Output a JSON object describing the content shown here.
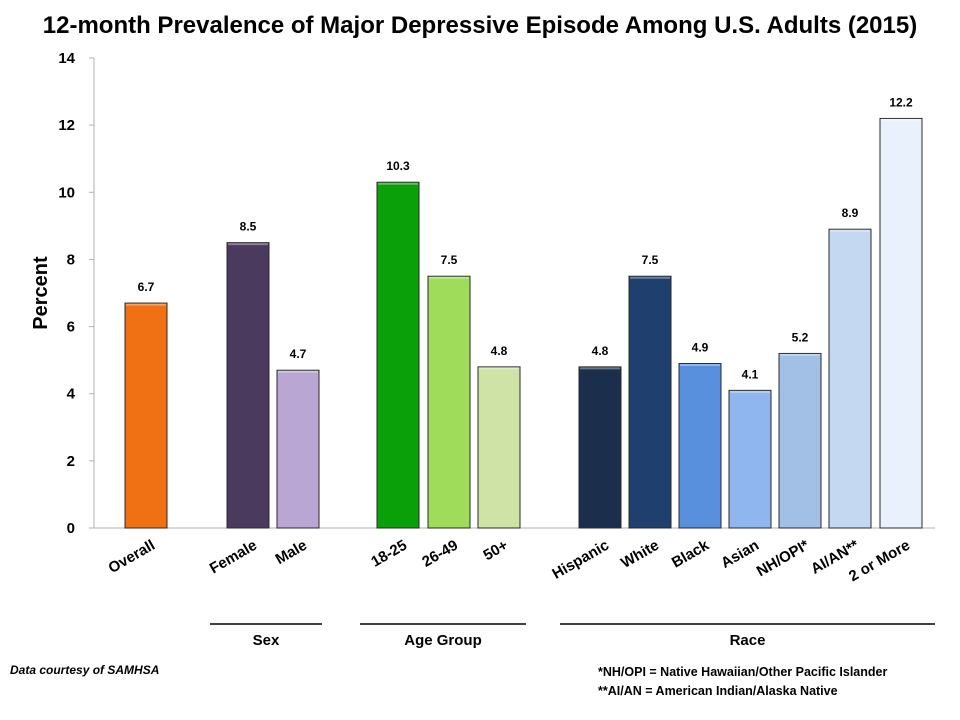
{
  "chart_data": {
    "type": "bar",
    "title": "12-month Prevalence of Major Depressive Episode Among U.S. Adults (2015)",
    "ylabel": "Percent",
    "xlabel": "",
    "ylim": [
      0,
      14
    ],
    "yticks": [
      "0",
      "2",
      "4",
      "6",
      "8",
      "10",
      "12",
      "14"
    ],
    "grid": false,
    "categories": [
      "Overall",
      "Female",
      "Male",
      "18-25",
      "26-49",
      "50+",
      "Hispanic",
      "White",
      "Black",
      "Asian",
      "NH/OPI*",
      "AI/AN**",
      "2 or More"
    ],
    "values": [
      6.7,
      8.5,
      4.7,
      10.3,
      7.5,
      4.8,
      4.8,
      7.5,
      4.9,
      4.1,
      5.2,
      8.9,
      12.2
    ],
    "value_labels": [
      "6.7",
      "8.5",
      "4.7",
      "10.3",
      "7.5",
      "4.8",
      "4.8",
      "7.5",
      "4.9",
      "4.1",
      "5.2",
      "8.9",
      "12.2"
    ],
    "colors": [
      "#f07014",
      "#4a3a5e",
      "#b9a6d2",
      "#0aa00a",
      "#9edc5a",
      "#d0e3a6",
      "#1b2f4d",
      "#1f3f6e",
      "#5890de",
      "#8fb6ee",
      "#a2bfe6",
      "#c4d8f2",
      "#e8f1fc"
    ],
    "groups": [
      {
        "label": "Sex",
        "members": [
          "Female",
          "Male"
        ]
      },
      {
        "label": "Age Group",
        "members": [
          "18-25",
          "26-49",
          "50+"
        ]
      },
      {
        "label": "Race",
        "members": [
          "Hispanic",
          "White",
          "Black",
          "Asian",
          "NH/OPI*",
          "AI/AN**",
          "2 or More"
        ]
      }
    ]
  },
  "notes": {
    "credit": "Data courtesy of SAMHSA",
    "footnote1": "*NH/OPI = Native Hawaiian/Other Pacific Islander",
    "footnote2": "**AI/AN = American Indian/Alaska Native"
  }
}
